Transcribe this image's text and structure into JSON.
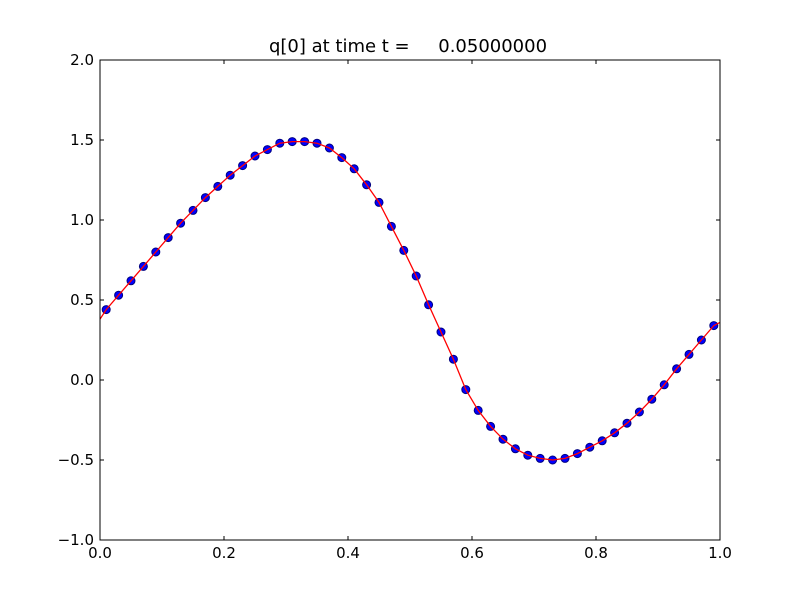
{
  "chart_data": {
    "type": "line",
    "title": "q[0] at time t =     0.05000000",
    "xlabel": "",
    "ylabel": "",
    "xlim": [
      0.0,
      1.0
    ],
    "ylim": [
      -1.0,
      2.0
    ],
    "xticks": [
      "0.0",
      "0.2",
      "0.4",
      "0.6",
      "0.8",
      "1.0"
    ],
    "xtick_values": [
      0.0,
      0.2,
      0.4,
      0.6,
      0.8,
      1.0
    ],
    "yticks": [
      "−1.0",
      "−0.5",
      "0.0",
      "0.5",
      "1.0",
      "1.5",
      "2.0"
    ],
    "ytick_values": [
      -1.0,
      -0.5,
      0.0,
      0.5,
      1.0,
      1.5,
      2.0
    ],
    "grid": false,
    "series": [
      {
        "style": "markers",
        "color": "#0000ff",
        "edge_color": "#000080",
        "x": [
          0.01,
          0.03,
          0.05,
          0.07,
          0.09,
          0.11,
          0.13,
          0.15,
          0.17,
          0.19,
          0.21,
          0.23,
          0.25,
          0.27,
          0.29,
          0.31,
          0.33,
          0.35,
          0.37,
          0.39,
          0.41,
          0.43,
          0.45,
          0.47,
          0.49,
          0.51,
          0.53,
          0.55,
          0.57,
          0.59,
          0.61,
          0.63,
          0.65,
          0.67,
          0.69,
          0.71,
          0.73,
          0.75,
          0.77,
          0.79,
          0.81,
          0.83,
          0.85,
          0.87,
          0.89,
          0.91,
          0.93,
          0.95,
          0.97,
          0.99
        ],
        "y": [
          0.44,
          0.53,
          0.62,
          0.71,
          0.8,
          0.89,
          0.98,
          1.06,
          1.14,
          1.21,
          1.28,
          1.34,
          1.4,
          1.44,
          1.48,
          1.49,
          1.49,
          1.48,
          1.45,
          1.39,
          1.32,
          1.22,
          1.11,
          0.96,
          0.81,
          0.65,
          0.47,
          0.3,
          0.13,
          -0.06,
          -0.19,
          -0.29,
          -0.37,
          -0.43,
          -0.47,
          -0.49,
          -0.5,
          -0.49,
          -0.46,
          -0.42,
          -0.38,
          -0.33,
          -0.27,
          -0.2,
          -0.12,
          -0.03,
          0.07,
          0.16,
          0.25,
          0.34
        ]
      },
      {
        "style": "line",
        "color": "#ff0000",
        "x": [
          0.0,
          0.01,
          0.03,
          0.05,
          0.07,
          0.09,
          0.11,
          0.13,
          0.15,
          0.17,
          0.19,
          0.21,
          0.23,
          0.25,
          0.27,
          0.29,
          0.31,
          0.33,
          0.35,
          0.37,
          0.39,
          0.41,
          0.43,
          0.45,
          0.47,
          0.49,
          0.51,
          0.53,
          0.55,
          0.57,
          0.59,
          0.61,
          0.63,
          0.65,
          0.67,
          0.69,
          0.71,
          0.73,
          0.75,
          0.77,
          0.79,
          0.81,
          0.83,
          0.85,
          0.87,
          0.89,
          0.91,
          0.93,
          0.95,
          0.97,
          0.99,
          1.0
        ],
        "y": [
          0.38,
          0.44,
          0.53,
          0.62,
          0.71,
          0.8,
          0.89,
          0.98,
          1.06,
          1.14,
          1.21,
          1.28,
          1.34,
          1.4,
          1.44,
          1.48,
          1.49,
          1.49,
          1.48,
          1.45,
          1.39,
          1.32,
          1.22,
          1.11,
          0.96,
          0.81,
          0.65,
          0.47,
          0.3,
          0.13,
          -0.06,
          -0.19,
          -0.29,
          -0.37,
          -0.43,
          -0.47,
          -0.49,
          -0.5,
          -0.49,
          -0.46,
          -0.42,
          -0.38,
          -0.33,
          -0.27,
          -0.2,
          -0.12,
          -0.03,
          0.07,
          0.16,
          0.25,
          0.34,
          0.36
        ]
      }
    ]
  }
}
